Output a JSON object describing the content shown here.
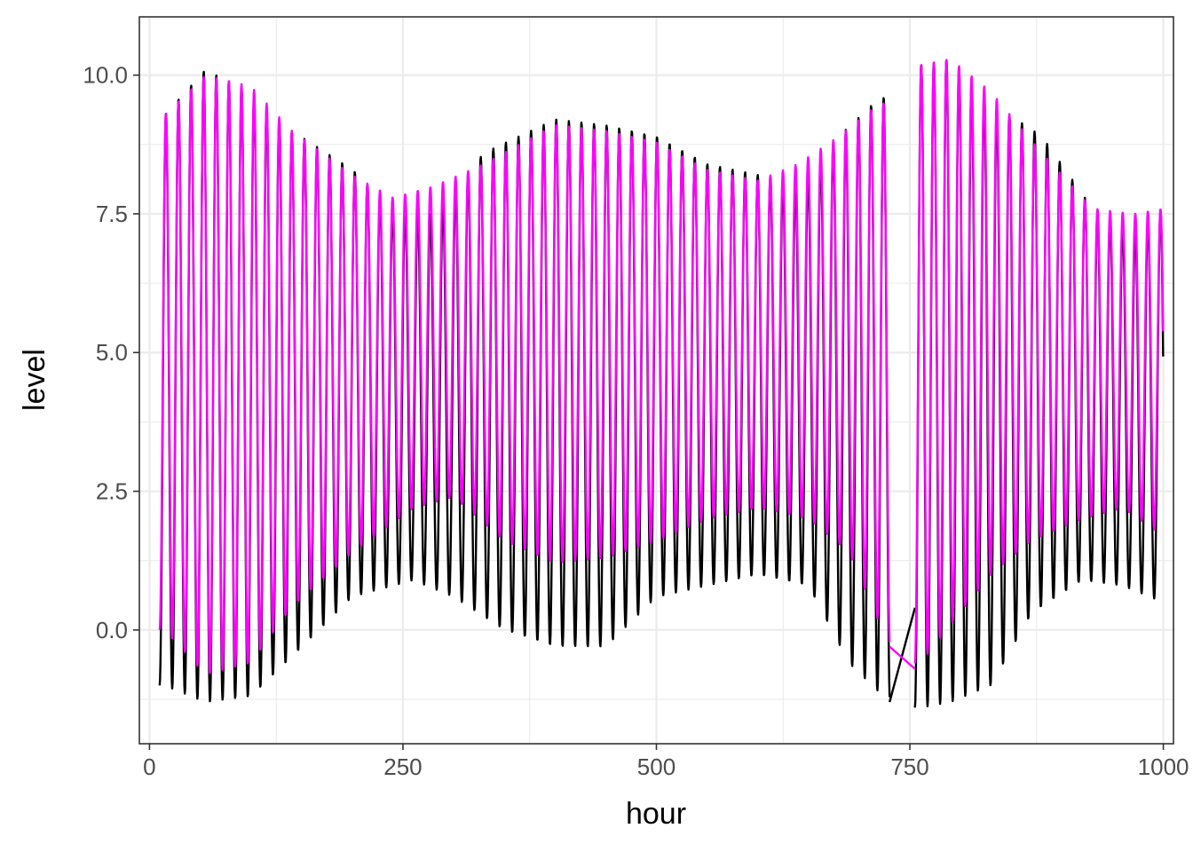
{
  "chart_data": {
    "type": "line",
    "xlabel": "hour",
    "ylabel": "level",
    "xlim": [
      -10,
      1010
    ],
    "ylim": [
      -2.05,
      11.05
    ],
    "x_ticks": [
      0,
      250,
      500,
      750,
      1000
    ],
    "x_tick_labels": [
      "0",
      "250",
      "500",
      "750",
      "1000"
    ],
    "y_ticks": [
      0.0,
      2.5,
      5.0,
      7.5,
      10.0
    ],
    "y_tick_labels": [
      "0.0",
      "2.5",
      "5.0",
      "7.5",
      "10.0"
    ],
    "grid": true,
    "legend": "none",
    "tide_period_hours": 12.42,
    "series": [
      {
        "color": "#000000",
        "x_start": 10,
        "x_end": 1000,
        "gap": [
          730,
          755
        ],
        "segments": [
          {
            "x_from": 10,
            "x_to": 730,
            "maxima": [
              [
                15,
                9.3
              ],
              [
                55,
                10.1
              ],
              [
                100,
                9.7
              ],
              [
                140,
                9.0
              ],
              [
                200,
                8.3
              ],
              [
                240,
                7.6
              ],
              [
                280,
                7.5
              ],
              [
                330,
                8.6
              ],
              [
                400,
                9.2
              ],
              [
                450,
                9.1
              ],
              [
                500,
                8.9
              ],
              [
                550,
                8.4
              ],
              [
                600,
                8.2
              ],
              [
                640,
                8.0
              ],
              [
                680,
                8.9
              ],
              [
                720,
                9.6
              ]
            ],
            "minima": [
              [
                15,
                -1.0
              ],
              [
                55,
                -1.3
              ],
              [
                100,
                -1.2
              ],
              [
                140,
                -0.5
              ],
              [
                200,
                0.6
              ],
              [
                260,
                0.9
              ],
              [
                300,
                0.6
              ],
              [
                350,
                0.0
              ],
              [
                400,
                -0.3
              ],
              [
                450,
                -0.3
              ],
              [
                500,
                0.6
              ],
              [
                550,
                0.8
              ],
              [
                600,
                1.0
              ],
              [
                650,
                0.8
              ],
              [
                690,
                -0.6
              ],
              [
                730,
                -1.3
              ]
            ]
          },
          {
            "x_from": 755,
            "x_to": 1000,
            "maxima": [
              [
                760,
                10.2
              ],
              [
                790,
                10.3
              ],
              [
                830,
                9.5
              ],
              [
                880,
                8.9
              ],
              [
                930,
                7.6
              ],
              [
                970,
                7.2
              ],
              [
                1000,
                7.6
              ]
            ],
            "minima": [
              [
                760,
                -1.4
              ],
              [
                790,
                -1.3
              ],
              [
                830,
                -1.0
              ],
              [
                870,
                0.3
              ],
              [
                920,
                0.9
              ],
              [
                960,
                0.8
              ],
              [
                1000,
                0.5
              ]
            ]
          }
        ],
        "gap_join": [
          [
            730,
            -1.3
          ],
          [
            755,
            0.4
          ]
        ]
      },
      {
        "color": "#ff00ff",
        "x_start": 10,
        "x_end": 1000,
        "gap": [
          730,
          755
        ],
        "segments": [
          {
            "x_from": 10,
            "x_to": 730,
            "maxima": [
              [
                15,
                9.3
              ],
              [
                55,
                10.0
              ],
              [
                100,
                9.8
              ],
              [
                140,
                9.0
              ],
              [
                200,
                8.2
              ],
              [
                240,
                7.8
              ],
              [
                280,
                8.0
              ],
              [
                330,
                8.4
              ],
              [
                400,
                9.1
              ],
              [
                450,
                9.0
              ],
              [
                500,
                8.8
              ],
              [
                550,
                8.3
              ],
              [
                600,
                8.1
              ],
              [
                640,
                8.4
              ],
              [
                680,
                8.9
              ],
              [
                720,
                9.5
              ]
            ],
            "minima": [
              [
                15,
                0.0
              ],
              [
                55,
                -0.8
              ],
              [
                100,
                -0.6
              ],
              [
                140,
                0.4
              ],
              [
                200,
                1.4
              ],
              [
                260,
                2.2
              ],
              [
                300,
                2.4
              ],
              [
                350,
                1.6
              ],
              [
                400,
                1.2
              ],
              [
                450,
                1.3
              ],
              [
                500,
                1.6
              ],
              [
                550,
                2.0
              ],
              [
                600,
                2.2
              ],
              [
                650,
                2.0
              ],
              [
                690,
                1.4
              ],
              [
                730,
                -0.3
              ]
            ]
          },
          {
            "x_from": 755,
            "x_to": 1000,
            "maxima": [
              [
                760,
                10.2
              ],
              [
                790,
                10.3
              ],
              [
                830,
                9.7
              ],
              [
                880,
                8.6
              ],
              [
                930,
                7.6
              ],
              [
                970,
                7.5
              ],
              [
                1000,
                7.6
              ]
            ],
            "minima": [
              [
                760,
                -0.6
              ],
              [
                790,
                0.1
              ],
              [
                830,
                1.0
              ],
              [
                870,
                1.6
              ],
              [
                920,
                2.0
              ],
              [
                960,
                2.2
              ],
              [
                1000,
                1.7
              ]
            ]
          }
        ],
        "gap_join": [
          [
            730,
            -0.3
          ],
          [
            755,
            -0.7
          ]
        ]
      }
    ]
  }
}
